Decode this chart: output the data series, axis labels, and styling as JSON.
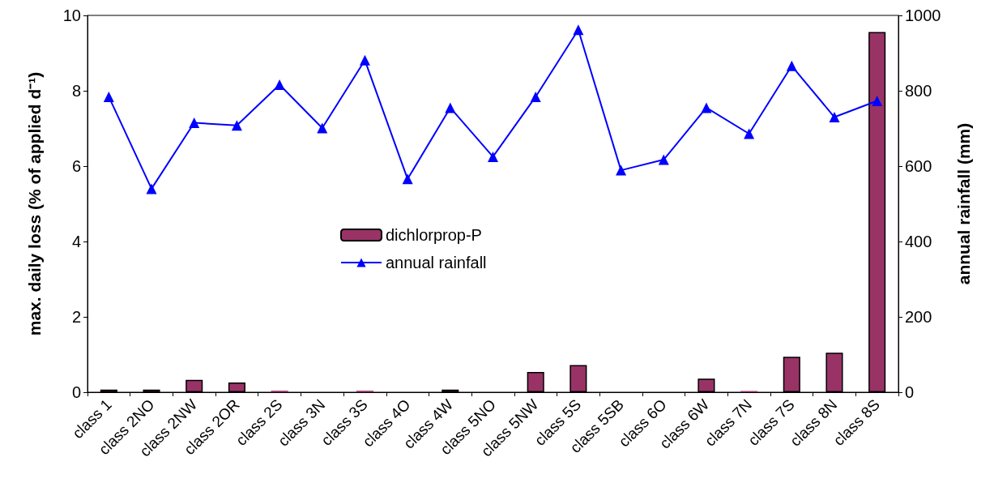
{
  "chart_data": {
    "type": "bar",
    "ylabel": "max. daily loss (% of applied d⁻¹)",
    "y2label": "annual rainfall (mm)",
    "categories": [
      "class 1",
      "class 2NO",
      "class 2NW",
      "class 2OR",
      "class 2S",
      "class 3N",
      "class 3S",
      "class 4O",
      "class 4W",
      "class 5NO",
      "class 5NW",
      "class 5S",
      "class 5SB",
      "class 6O",
      "class 6W",
      "class 7N",
      "class 7S",
      "class 8N",
      "class 8S"
    ],
    "series": [
      {
        "name": "dichlorprop-P",
        "color": "#993366",
        "values": [
          0.07,
          0.07,
          0.33,
          0.26,
          0.04,
          0,
          0.04,
          0,
          0.07,
          0,
          0.54,
          0.72,
          0,
          0,
          0.36,
          0.03,
          0.94,
          1.05,
          9.56
        ]
      },
      {
        "name": "annual rainfall",
        "type": "line",
        "axis": "y2",
        "color": "#0000ff",
        "marker": "triangle",
        "values": [
          784,
          540,
          715,
          708,
          816,
          701,
          881,
          566,
          755,
          625,
          784,
          962,
          589,
          617,
          755,
          686,
          866,
          730,
          773
        ]
      }
    ],
    "ylim": [
      0,
      10
    ],
    "yticks": [
      0,
      2,
      4,
      6,
      8,
      10
    ],
    "y2lim": [
      0,
      1000
    ],
    "y2ticks": [
      0,
      200,
      400,
      600,
      800,
      1000
    ],
    "grid": false,
    "legend": "center"
  }
}
